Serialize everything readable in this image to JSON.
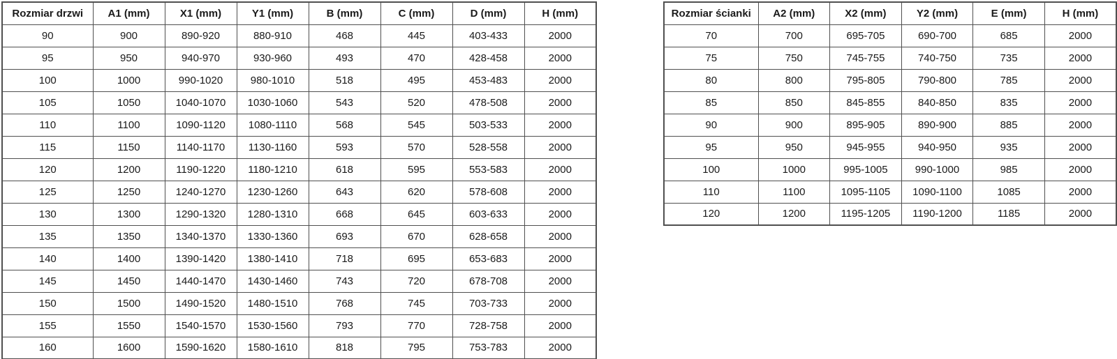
{
  "colors": {
    "border": "#4f4f4f",
    "text": "#1a1a1a",
    "background": "#ffffff"
  },
  "tables": [
    {
      "name": "door-size-table",
      "headers": [
        "Rozmiar drzwi",
        "A1 (mm)",
        "X1 (mm)",
        "Y1 (mm)",
        "B (mm)",
        "C (mm)",
        "D (mm)",
        "H (mm)"
      ],
      "rows": [
        [
          "90",
          "900",
          "890-920",
          "880-910",
          "468",
          "445",
          "403-433",
          "2000"
        ],
        [
          "95",
          "950",
          "940-970",
          "930-960",
          "493",
          "470",
          "428-458",
          "2000"
        ],
        [
          "100",
          "1000",
          "990-1020",
          "980-1010",
          "518",
          "495",
          "453-483",
          "2000"
        ],
        [
          "105",
          "1050",
          "1040-1070",
          "1030-1060",
          "543",
          "520",
          "478-508",
          "2000"
        ],
        [
          "110",
          "1100",
          "1090-1120",
          "1080-1110",
          "568",
          "545",
          "503-533",
          "2000"
        ],
        [
          "115",
          "1150",
          "1140-1170",
          "1130-1160",
          "593",
          "570",
          "528-558",
          "2000"
        ],
        [
          "120",
          "1200",
          "1190-1220",
          "1180-1210",
          "618",
          "595",
          "553-583",
          "2000"
        ],
        [
          "125",
          "1250",
          "1240-1270",
          "1230-1260",
          "643",
          "620",
          "578-608",
          "2000"
        ],
        [
          "130",
          "1300",
          "1290-1320",
          "1280-1310",
          "668",
          "645",
          "603-633",
          "2000"
        ],
        [
          "135",
          "1350",
          "1340-1370",
          "1330-1360",
          "693",
          "670",
          "628-658",
          "2000"
        ],
        [
          "140",
          "1400",
          "1390-1420",
          "1380-1410",
          "718",
          "695",
          "653-683",
          "2000"
        ],
        [
          "145",
          "1450",
          "1440-1470",
          "1430-1460",
          "743",
          "720",
          "678-708",
          "2000"
        ],
        [
          "150",
          "1500",
          "1490-1520",
          "1480-1510",
          "768",
          "745",
          "703-733",
          "2000"
        ],
        [
          "155",
          "1550",
          "1540-1570",
          "1530-1560",
          "793",
          "770",
          "728-758",
          "2000"
        ],
        [
          "160",
          "1600",
          "1590-1620",
          "1580-1610",
          "818",
          "795",
          "753-783",
          "2000"
        ]
      ]
    },
    {
      "name": "wall-size-table",
      "headers": [
        "Rozmiar ścianki",
        "A2 (mm)",
        "X2 (mm)",
        "Y2 (mm)",
        "E (mm)",
        "H (mm)"
      ],
      "rows": [
        [
          "70",
          "700",
          "695-705",
          "690-700",
          "685",
          "2000"
        ],
        [
          "75",
          "750",
          "745-755",
          "740-750",
          "735",
          "2000"
        ],
        [
          "80",
          "800",
          "795-805",
          "790-800",
          "785",
          "2000"
        ],
        [
          "85",
          "850",
          "845-855",
          "840-850",
          "835",
          "2000"
        ],
        [
          "90",
          "900",
          "895-905",
          "890-900",
          "885",
          "2000"
        ],
        [
          "95",
          "950",
          "945-955",
          "940-950",
          "935",
          "2000"
        ],
        [
          "100",
          "1000",
          "995-1005",
          "990-1000",
          "985",
          "2000"
        ],
        [
          "110",
          "1100",
          "1095-1105",
          "1090-1100",
          "1085",
          "2000"
        ],
        [
          "120",
          "1200",
          "1195-1205",
          "1190-1200",
          "1185",
          "2000"
        ]
      ]
    }
  ]
}
